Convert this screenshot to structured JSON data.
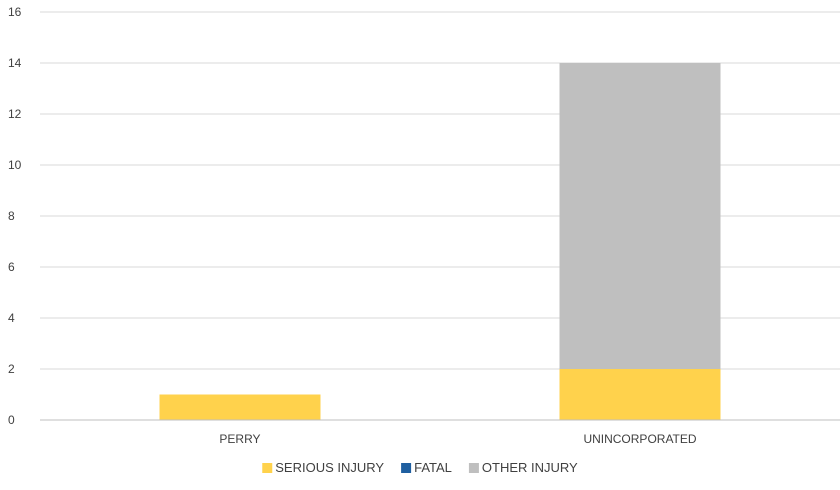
{
  "chart_data": {
    "type": "bar",
    "stacked": true,
    "categories": [
      "PERRY",
      "UNINCORPORATED"
    ],
    "series": [
      {
        "name": "SERIOUS INJURY",
        "values": [
          1,
          2
        ],
        "color": "#FFD24C"
      },
      {
        "name": "FATAL",
        "values": [
          0,
          0
        ],
        "color": "#1F5FA0"
      },
      {
        "name": "OTHER INJURY",
        "values": [
          0,
          12
        ],
        "color": "#BFBFBF"
      }
    ],
    "y_ticks": [
      "0",
      "2",
      "4",
      "6",
      "8",
      "10",
      "12",
      "14",
      "16"
    ],
    "ylim": [
      0,
      16
    ],
    "grid": true,
    "legend_position": "bottom",
    "colors": {
      "gridline": "#D9D9D9",
      "axis": "#BFBFBF",
      "text": "#404040"
    }
  }
}
